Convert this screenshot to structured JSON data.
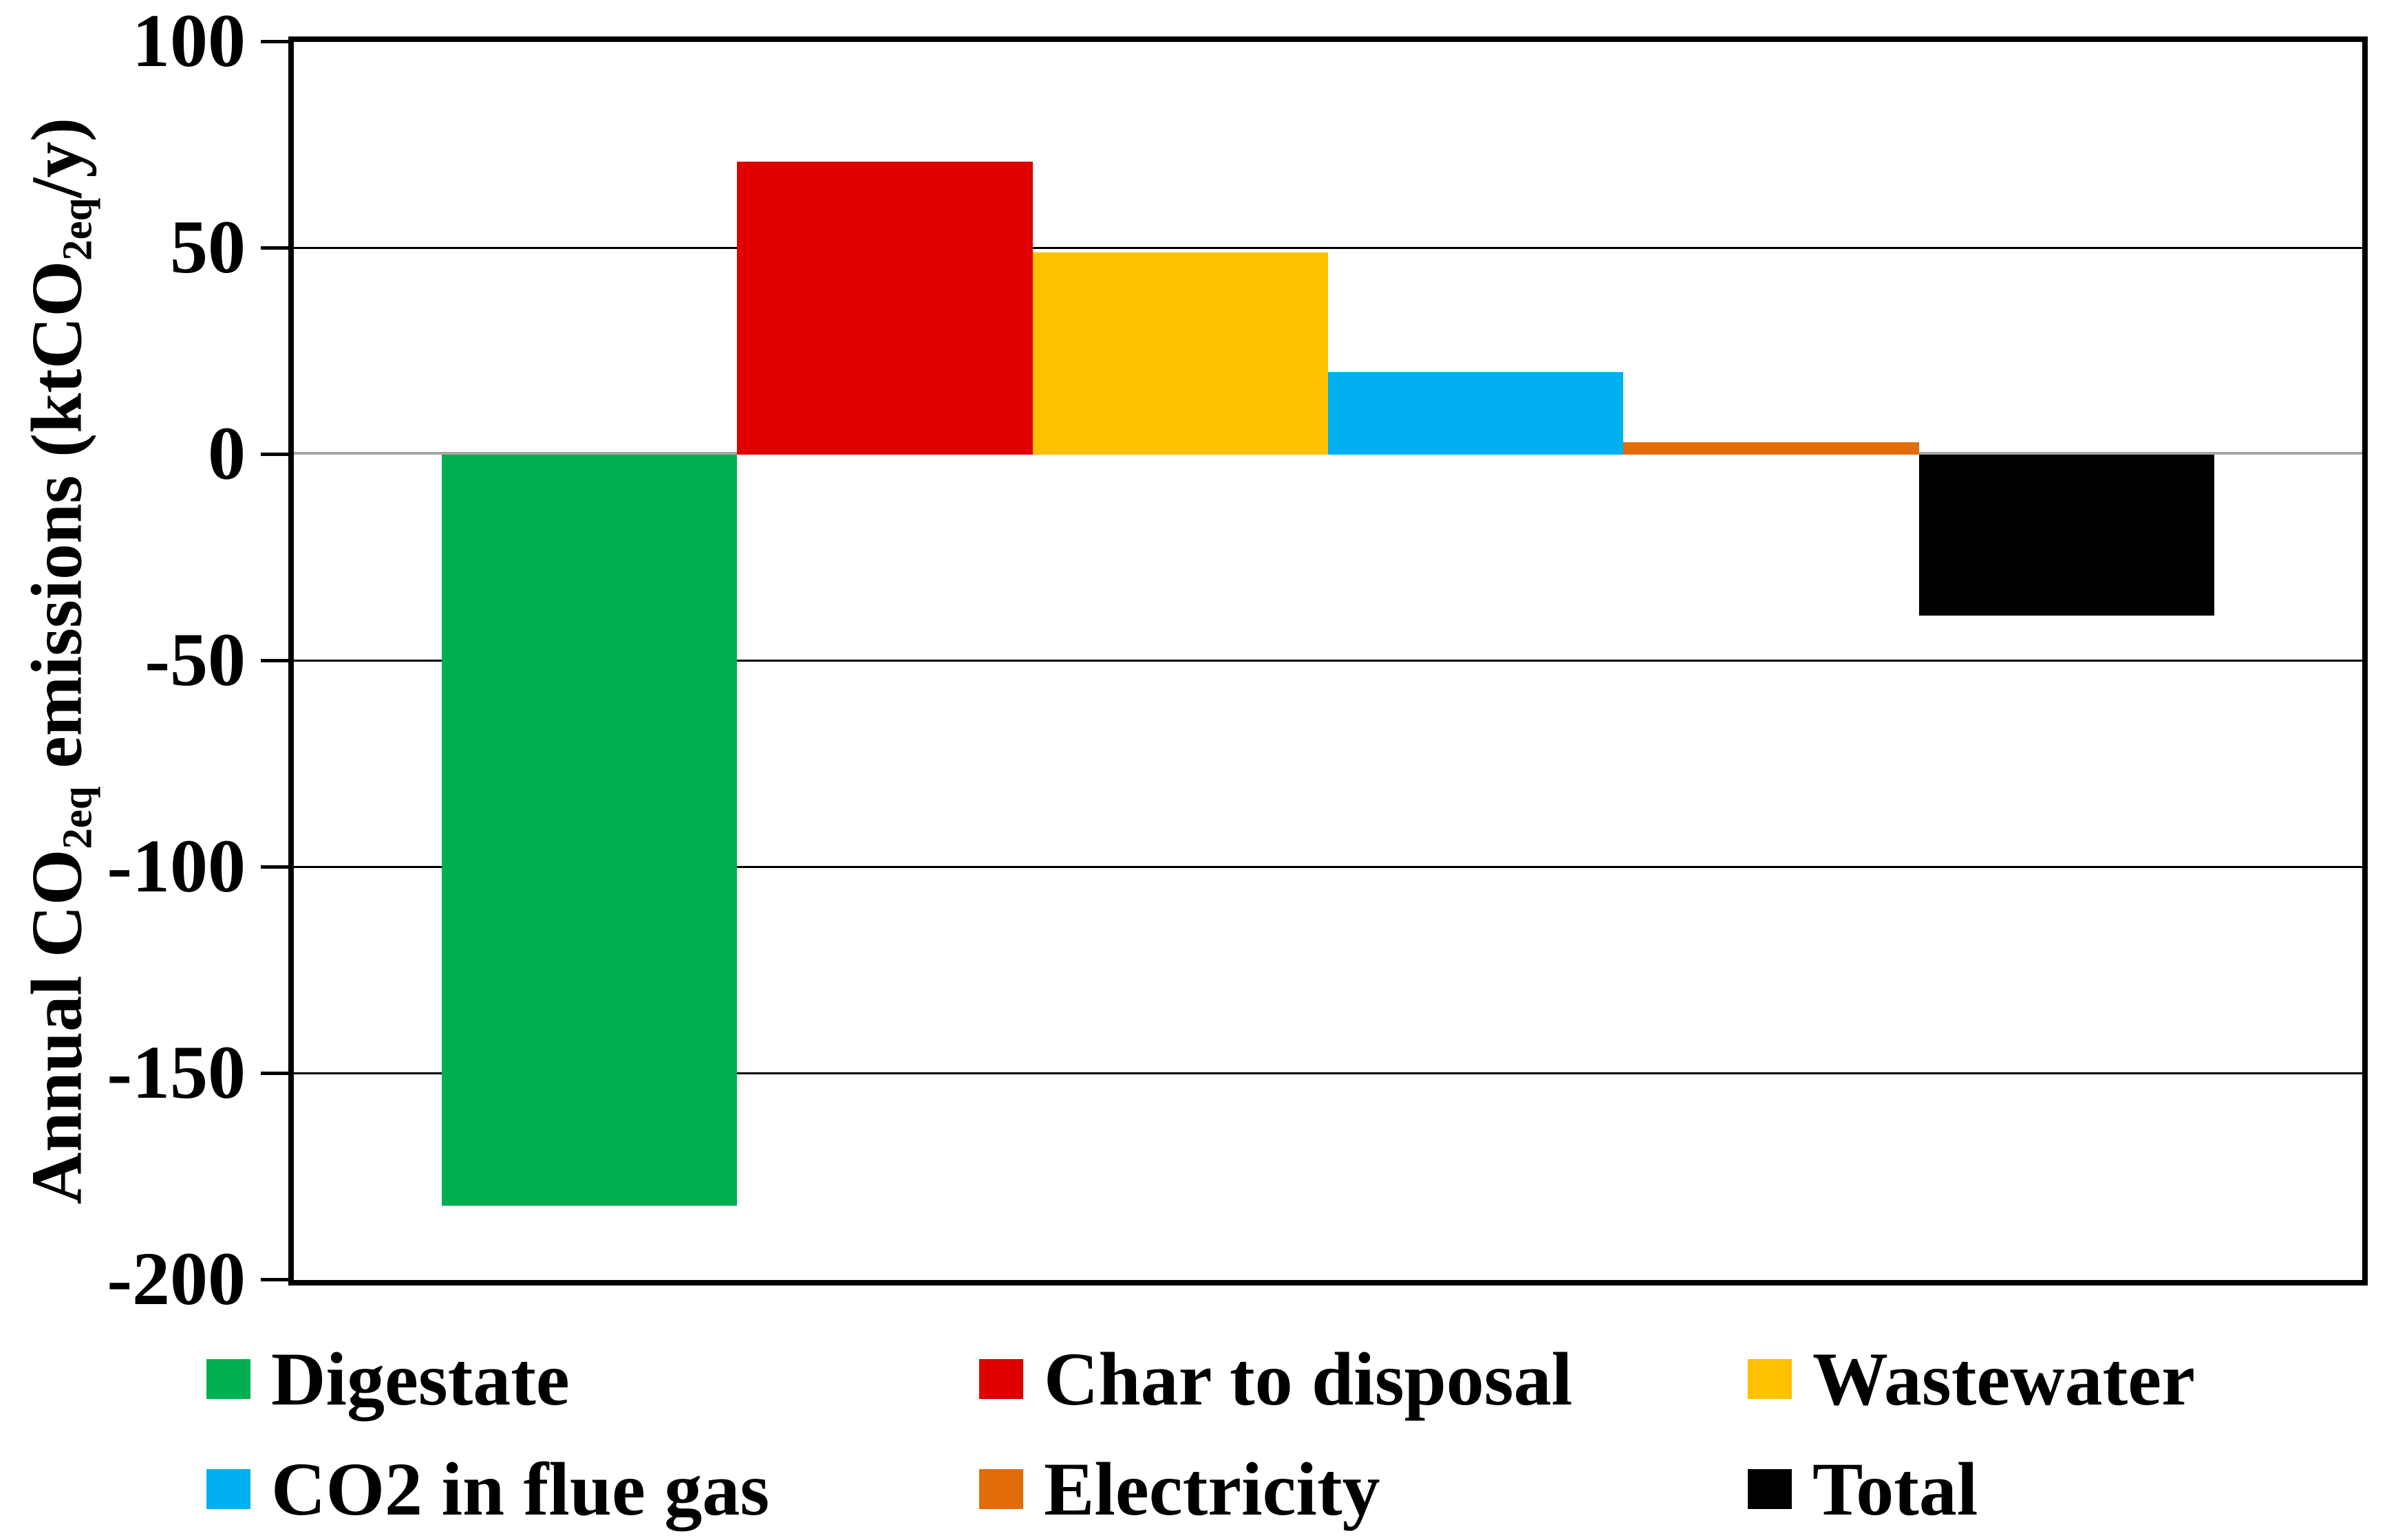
{
  "chart_data": {
    "type": "bar",
    "categories": [
      "Digestate",
      "Char to disposal",
      "Wastewater",
      "CO2 in flue gas",
      "Electricity",
      "Total"
    ],
    "values": [
      -182,
      71,
      49,
      20,
      3,
      -39
    ],
    "colors": [
      "#00B050",
      "#E00000",
      "#FFC000",
      "#00B0F0",
      "#E26B0A",
      "#000000"
    ],
    "title": "",
    "xlabel": "",
    "ylabel": "Annual CO2eq emissions (ktCO2eq/y)",
    "ylim": [
      -200,
      100
    ],
    "ytick_step": 50,
    "grid": "horizontal",
    "gridline_color": "#000000",
    "zero_line_color": "#A6A6A6",
    "bar_baseline": 0,
    "legend_position": "bottom"
  },
  "y_axis": {
    "title_parts": [
      {
        "text": "Annual CO"
      },
      {
        "text": "2eq",
        "subscript": true
      },
      {
        "text": " emissions (ktCO"
      },
      {
        "text": "2eq",
        "subscript": true
      },
      {
        "text": "/y)"
      }
    ],
    "tick_labels": [
      "100",
      "50",
      "0",
      "-50",
      "-100",
      "-150",
      "-200"
    ]
  },
  "legend": {
    "items": [
      {
        "label": "Digestate",
        "color": "#00B050"
      },
      {
        "label": "Char to disposal",
        "color": "#E00000"
      },
      {
        "label": "Wastewater",
        "color": "#FFC000"
      },
      {
        "label": "CO2 in flue gas",
        "color": "#00B0F0"
      },
      {
        "label": "Electricity",
        "color": "#E26B0A"
      },
      {
        "label": "Total",
        "color": "#000000"
      }
    ]
  }
}
